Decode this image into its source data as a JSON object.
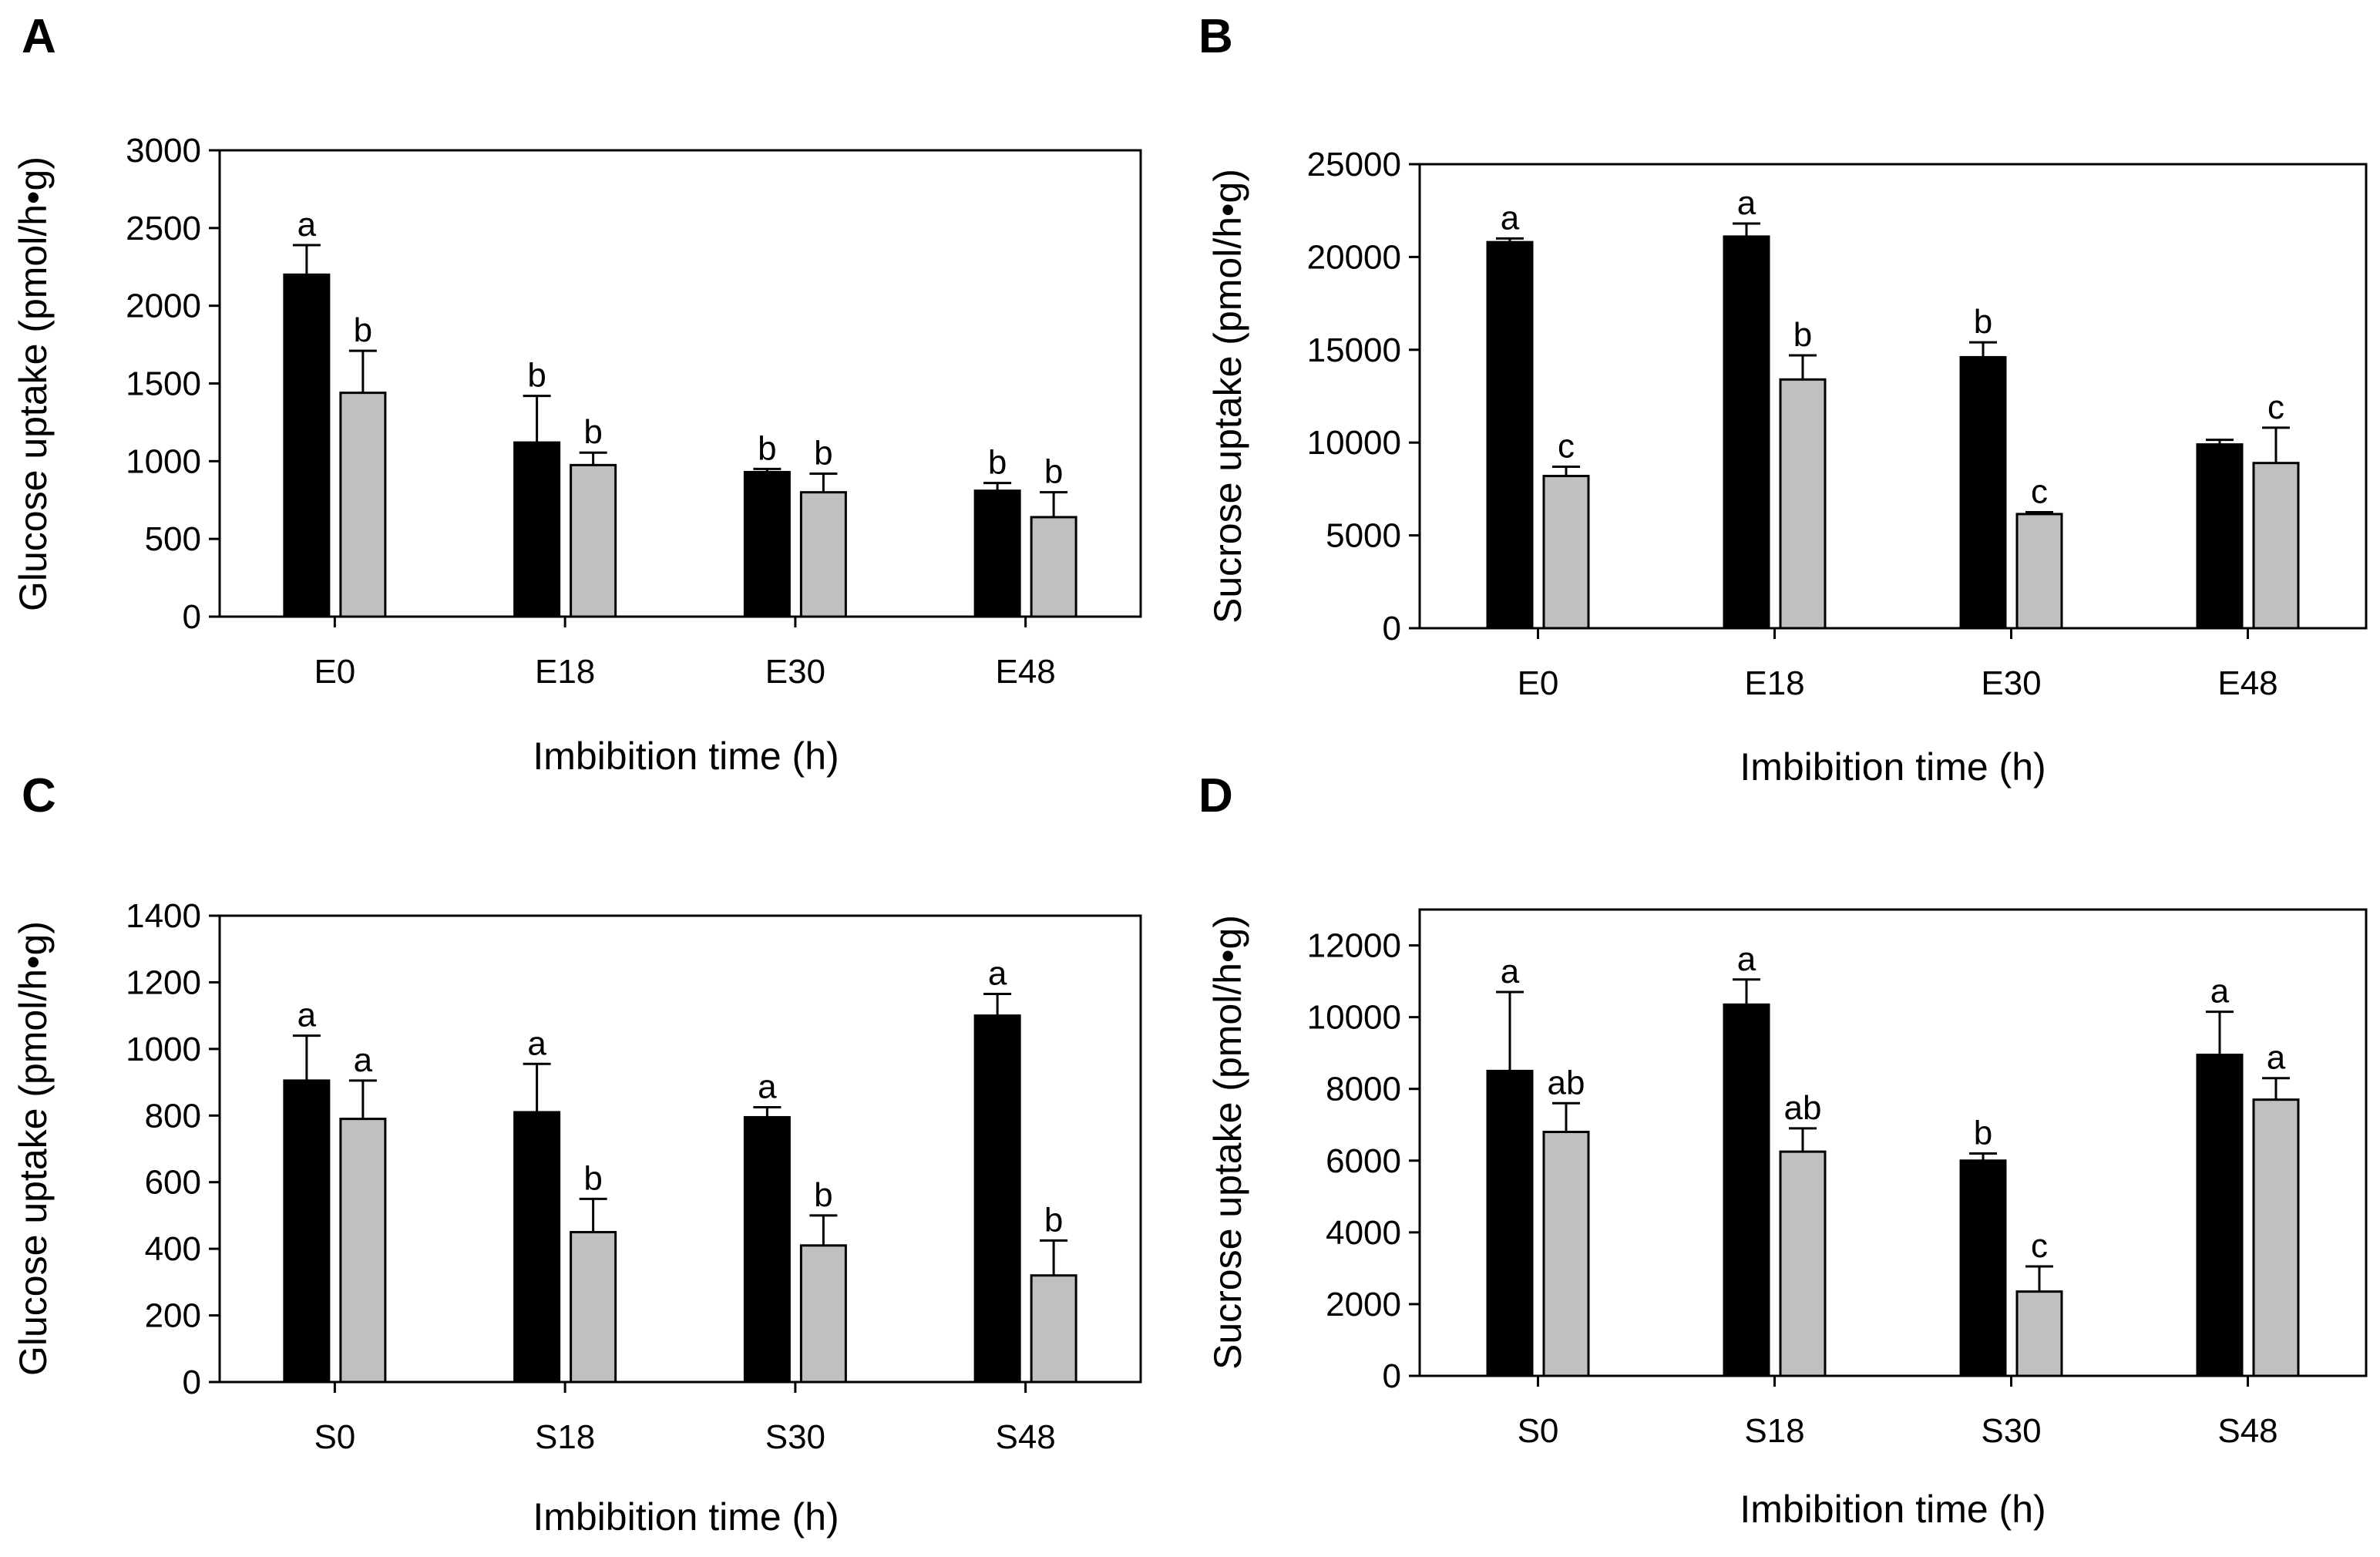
{
  "colors": {
    "series1": "#000000",
    "series2": "#c0c0c0",
    "axis": "#000000"
  },
  "chart_data": [
    {
      "panel": "A",
      "type": "bar",
      "xlabel": "Imbibition time (h)",
      "ylabel": "Glucose uptake (pmol/h•g)",
      "ylim": [
        0,
        3000
      ],
      "yticks": [
        0,
        500,
        1000,
        1500,
        2000,
        2500,
        3000
      ],
      "categories": [
        "E0",
        "E18",
        "E30",
        "E48"
      ],
      "series": [
        {
          "name": "series 1 (black)",
          "values": [
            2200,
            1120,
            930,
            810
          ],
          "errors": [
            190,
            300,
            20,
            50
          ],
          "labels": [
            "a",
            "b",
            "b",
            "b"
          ]
        },
        {
          "name": "series 2 (gray)",
          "values": [
            1440,
            975,
            800,
            640
          ],
          "errors": [
            270,
            80,
            120,
            160
          ],
          "labels": [
            "b",
            "b",
            "b",
            "b"
          ]
        }
      ]
    },
    {
      "panel": "B",
      "type": "bar",
      "xlabel": "Imbibition time (h)",
      "ylabel": "Sucrose uptake (pmol/h•g)",
      "ylim": [
        0,
        25000
      ],
      "yticks": [
        0,
        5000,
        10000,
        15000,
        20000,
        25000
      ],
      "categories": [
        "E0",
        "E18",
        "E30",
        "E48"
      ],
      "series": [
        {
          "name": "series 1 (black)",
          "values": [
            20800,
            21100,
            14600,
            9900
          ],
          "errors": [
            200,
            700,
            800,
            250
          ],
          "labels": [
            "a",
            "a",
            "b",
            ""
          ]
        },
        {
          "name": "series 2 (gray)",
          "values": [
            8200,
            13400,
            6150,
            8900
          ],
          "errors": [
            500,
            1300,
            100,
            1900
          ],
          "labels": [
            "c",
            "b",
            "c",
            "c"
          ]
        }
      ]
    },
    {
      "panel": "C",
      "type": "bar",
      "xlabel": "Imbibition time (h)",
      "ylabel": "Glucose uptake (pmol/h•g)",
      "ylim": [
        0,
        1400
      ],
      "yticks": [
        0,
        200,
        400,
        600,
        800,
        1000,
        1200,
        1400
      ],
      "categories": [
        "S0",
        "S18",
        "S30",
        "S48"
      ],
      "series": [
        {
          "name": "series 1 (black)",
          "values": [
            905,
            810,
            795,
            1100
          ],
          "errors": [
            135,
            145,
            30,
            65
          ],
          "labels": [
            "a",
            "a",
            "a",
            "a"
          ]
        },
        {
          "name": "series 2 (gray)",
          "values": [
            790,
            450,
            410,
            320
          ],
          "errors": [
            115,
            100,
            90,
            105
          ],
          "labels": [
            "a",
            "b",
            "b",
            "b"
          ]
        }
      ]
    },
    {
      "panel": "D",
      "type": "bar",
      "xlabel": "Imbibition time (h)",
      "ylabel": "Sucrose uptake (pmol/h•g)",
      "ylim": [
        0,
        13000
      ],
      "yticks": [
        0,
        2000,
        4000,
        6000,
        8000,
        10000,
        12000
      ],
      "categories": [
        "S0",
        "S18",
        "S30",
        "S48"
      ],
      "series": [
        {
          "name": "series 1 (black)",
          "values": [
            8500,
            10350,
            6000,
            8950
          ],
          "errors": [
            2200,
            700,
            200,
            1200
          ],
          "labels": [
            "a",
            "a",
            "b",
            "a"
          ]
        },
        {
          "name": "series 2 (gray)",
          "values": [
            6800,
            6250,
            2350,
            7700
          ],
          "errors": [
            800,
            650,
            700,
            600
          ],
          "labels": [
            "ab",
            "ab",
            "c",
            "a"
          ]
        }
      ]
    }
  ]
}
